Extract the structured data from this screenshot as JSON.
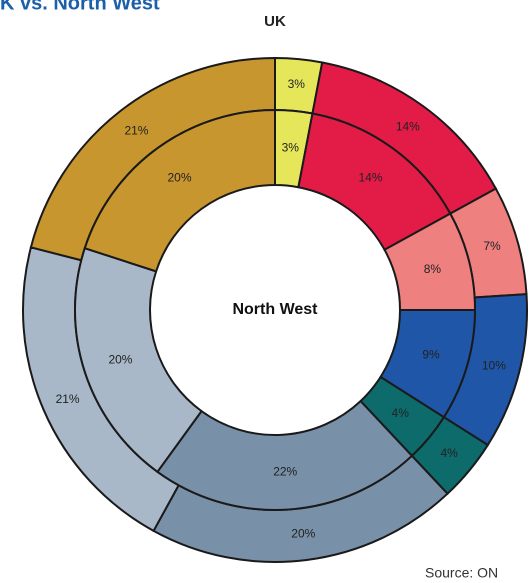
{
  "chart_data": {
    "type": "donut",
    "title": "K vs. North West",
    "source": "Source: ON",
    "categories": [
      "Yellow",
      "Red",
      "Pink",
      "Blue",
      "Teal",
      "Slate",
      "Light slate",
      "Gold"
    ],
    "colors": [
      "#e6e65a",
      "#e31c47",
      "#ef8080",
      "#1f56a8",
      "#0e6b6b",
      "#7890a8",
      "#a8b8c8",
      "#c8962e"
    ],
    "series": [
      {
        "name": "UK",
        "values": [
          3,
          14,
          7,
          10,
          4,
          20,
          21,
          21
        ],
        "value_labels": [
          "3%",
          "14%",
          "7%",
          "10%",
          "4%",
          "20%",
          "21%",
          "21%"
        ]
      },
      {
        "name": "North West",
        "values": [
          3,
          14,
          8,
          9,
          4,
          22,
          20,
          20
        ],
        "value_labels": [
          "3%",
          "14%",
          "8%",
          "9%",
          "4%",
          "22%",
          "20%",
          "20%"
        ]
      }
    ]
  }
}
